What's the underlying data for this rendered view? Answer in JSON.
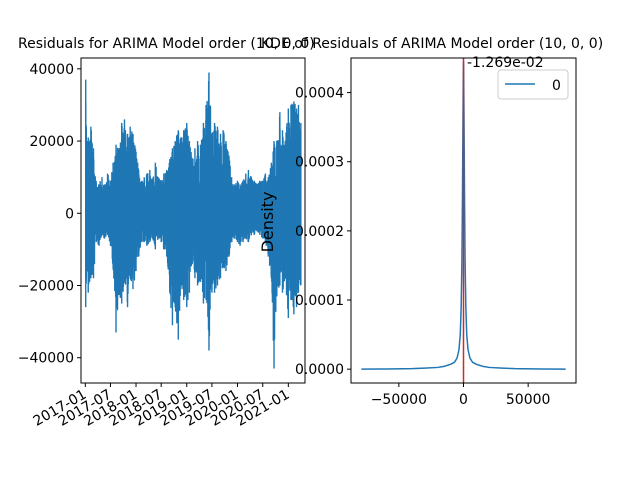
{
  "chart_data": [
    {
      "type": "line",
      "title": "Residuals for ARIMA Model order (10, 0, 0)",
      "xlabel": "",
      "ylabel": "",
      "x_tick_labels": [
        "2017-01",
        "2017-07",
        "2018-01",
        "2018-07",
        "2019-01",
        "2019-07",
        "2020-01",
        "2020-07",
        "2021-01"
      ],
      "y_ticks": [
        -40000,
        -20000,
        0,
        20000,
        40000
      ],
      "y_tick_labels": [
        "−40000",
        "−20000",
        "0",
        "20000",
        "40000"
      ],
      "xlim": [
        "2016-12-01",
        "2021-05-01"
      ],
      "ylim": [
        -47000,
        43000
      ],
      "grid": false,
      "legend": null,
      "color": "#1f77b4",
      "series": [
        {
          "x": [
            "2017-01-04",
            "2017-01-08",
            "2017-01-15",
            "2017-01-22",
            "2017-02-01",
            "2017-02-10",
            "2017-03-01",
            "2017-03-20",
            "2017-04-10",
            "2017-05-01",
            "2017-05-20",
            "2017-06-10",
            "2017-07-01",
            "2017-07-20",
            "2017-08-10",
            "2017-09-01",
            "2017-09-20",
            "2017-10-10",
            "2017-11-01",
            "2017-11-20",
            "2017-12-10",
            "2018-01-01",
            "2018-01-20",
            "2018-02-10",
            "2018-03-01",
            "2018-03-20",
            "2018-04-10",
            "2018-05-01",
            "2018-05-20",
            "2018-06-10",
            "2018-07-01",
            "2018-07-20",
            "2018-08-10",
            "2018-09-01",
            "2018-09-20",
            "2018-10-10",
            "2018-11-01",
            "2018-11-20",
            "2018-12-10",
            "2019-01-01",
            "2019-01-20",
            "2019-02-10",
            "2019-03-01",
            "2019-03-20",
            "2019-04-10",
            "2019-05-01",
            "2019-05-20",
            "2019-06-10",
            "2019-07-01",
            "2019-07-20",
            "2019-08-10",
            "2019-09-01",
            "2019-09-20",
            "2019-10-10",
            "2019-11-01",
            "2019-11-20",
            "2019-12-10",
            "2020-01-01",
            "2020-01-20",
            "2020-02-10",
            "2020-03-01",
            "2020-03-20",
            "2020-04-10",
            "2020-05-01",
            "2020-05-20",
            "2020-06-10",
            "2020-07-01",
            "2020-07-20",
            "2020-08-10",
            "2020-09-01",
            "2020-09-20",
            "2020-10-10",
            "2020-11-01",
            "2020-11-20",
            "2020-12-10",
            "2021-01-01",
            "2021-01-20",
            "2021-02-10",
            "2021-03-01",
            "2021-03-15",
            "2021-04-01"
          ],
          "y_upper": [
            37000,
            24000,
            20000,
            21000,
            20000,
            24000,
            18000,
            9000,
            8000,
            10000,
            8000,
            11000,
            9000,
            14000,
            19000,
            18000,
            25000,
            26000,
            22000,
            24000,
            22000,
            17000,
            12000,
            9000,
            10000,
            11000,
            12000,
            9000,
            14000,
            10000,
            9000,
            11000,
            12000,
            15000,
            18000,
            20000,
            23000,
            21000,
            23000,
            25000,
            20000,
            15000,
            18000,
            20000,
            19000,
            25000,
            30000,
            39000,
            22000,
            25000,
            24000,
            22000,
            23000,
            20000,
            16000,
            10000,
            8000,
            9000,
            8000,
            9000,
            11000,
            12000,
            10000,
            9000,
            8000,
            9000,
            9000,
            11000,
            10000,
            14000,
            20000,
            20000,
            28000,
            23000,
            20000,
            29000,
            30000,
            31000,
            29000,
            30000,
            25000
          ],
          "y_lower": [
            -26000,
            -18000,
            -16000,
            -22000,
            -19000,
            -18000,
            -18000,
            -8000,
            -9000,
            -6000,
            -7000,
            -6000,
            -9000,
            -15000,
            -33000,
            -22000,
            -25000,
            -19000,
            -26000,
            -18000,
            -21000,
            -16000,
            -12000,
            -8000,
            -8000,
            -9000,
            -8000,
            -7000,
            -10000,
            -7000,
            -8000,
            -10000,
            -12000,
            -22000,
            -31000,
            -26000,
            -35000,
            -20000,
            -24000,
            -26000,
            -22000,
            -14000,
            -18000,
            -20000,
            -19000,
            -25000,
            -24000,
            -38000,
            -22000,
            -22000,
            -20000,
            -18000,
            -15000,
            -16000,
            -12000,
            -8000,
            -7000,
            -8000,
            -9000,
            -8000,
            -7000,
            -8000,
            -6000,
            -6000,
            -5000,
            -6000,
            -7000,
            -8000,
            -12000,
            -18000,
            -43000,
            -23000,
            -20000,
            -22000,
            -18000,
            -29000,
            -24000,
            -28000,
            -26000,
            -22000,
            -20000
          ]
        }
      ]
    },
    {
      "type": "line",
      "title": "KDE of Residuals of ARIMA Model order (10, 0, 0)",
      "xlabel": "",
      "ylabel": "Density",
      "x_ticks": [
        -50000,
        0,
        50000
      ],
      "x_tick_labels": [
        "−50000",
        "0",
        "50000"
      ],
      "y_ticks": [
        0,
        0.0001,
        0.0002,
        0.0003,
        0.0004
      ],
      "y_tick_labels": [
        "0.0000",
        "0.0001",
        "0.0002",
        "0.0003",
        "0.0004"
      ],
      "xlim": [
        -87000,
        87000
      ],
      "ylim": [
        -2e-05,
        0.00045
      ],
      "grid": false,
      "legend": "top-right",
      "series": [
        {
          "name": "0",
          "color": "#1f77b4",
          "x": [
            -79000,
            -60000,
            -40000,
            -30000,
            -20000,
            -15000,
            -10000,
            -7000,
            -5000,
            -3500,
            -2500,
            -1800,
            -1200,
            -800,
            -400,
            -150,
            0,
            150,
            400,
            800,
            1200,
            1800,
            2500,
            3500,
            5000,
            7000,
            10000,
            15000,
            20000,
            30000,
            40000,
            60000,
            79000
          ],
          "y": [
            0,
            3e-07,
            8e-07,
            1.5e-06,
            2.5e-06,
            4e-06,
            7e-06,
            1e-05,
            1.6e-05,
            2.8e-05,
            5e-05,
            9e-05,
            0.00016,
            0.00025,
            0.00036,
            0.000425,
            0.000445,
            0.000425,
            0.00036,
            0.00025,
            0.00016,
            9e-05,
            5e-05,
            2.8e-05,
            1.6e-05,
            1e-05,
            7e-06,
            4e-06,
            2.5e-06,
            1.5e-06,
            8e-07,
            3e-07,
            0
          ]
        }
      ],
      "vline": {
        "x": 0,
        "color": "#d62728"
      },
      "offset_label": "-1.269e-02"
    }
  ]
}
